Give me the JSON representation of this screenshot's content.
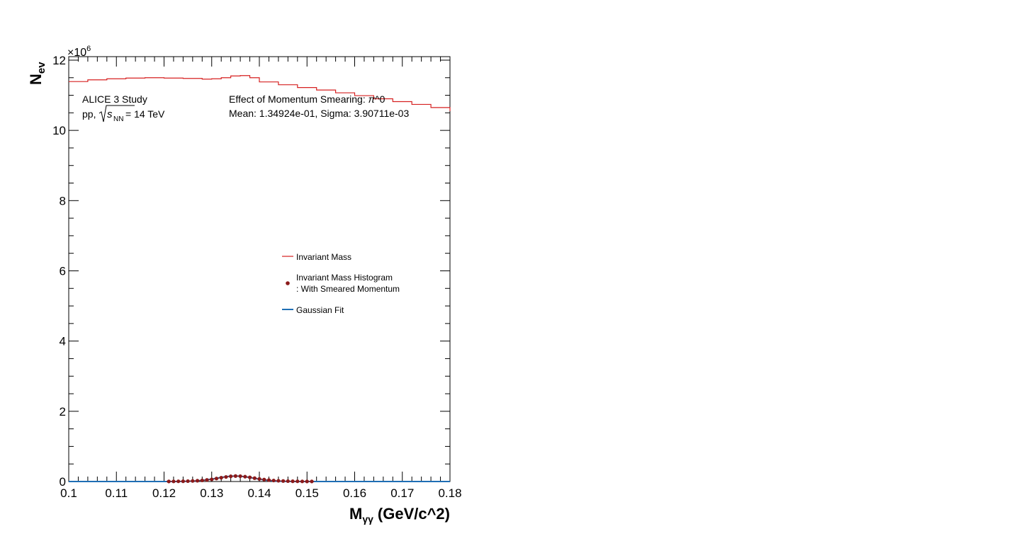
{
  "chart_data": {
    "type": "line",
    "xlabel_main": "M",
    "xlabel_sub": "γγ",
    "xlabel_unit": "(GeV/c^2)",
    "ylabel_main": "N",
    "ylabel_sub": "ev",
    "yexponent_base": "×10",
    "yexponent_power": "6",
    "xlim": [
      0.1,
      0.18
    ],
    "ylim": [
      0,
      12.1
    ],
    "xticks": [
      0.1,
      0.11,
      0.12,
      0.13,
      0.14,
      0.15,
      0.16,
      0.17,
      0.18
    ],
    "xtick_labels": [
      "0.1",
      "0.11",
      "0.12",
      "0.13",
      "0.14",
      "0.15",
      "0.16",
      "0.17",
      "0.18"
    ],
    "yticks": [
      0,
      2,
      4,
      6,
      8,
      10,
      12
    ],
    "ytick_labels": [
      "0",
      "2",
      "4",
      "6",
      "8",
      "10",
      "12"
    ],
    "annotations": {
      "study": "ALICE 3 Study",
      "system_prefix": "pp, ",
      "sqrt_s": "s",
      "sqrt_sub": "NN",
      "energy": " = 14 TeV",
      "effect_prefix": "Effect of Momentum Smearing: ",
      "effect_pi": "π",
      "effect_suffix": "^0",
      "fit_stats": "Mean: 1.34924e-01, Sigma: 3.90711e-03"
    },
    "legend_position": "center-right",
    "series": [
      {
        "name": "Invariant Mass",
        "style": "step",
        "color": "#d62020",
        "x": [
          0.1,
          0.104,
          0.108,
          0.112,
          0.116,
          0.12,
          0.124,
          0.128,
          0.13,
          0.132,
          0.134,
          0.136,
          0.138,
          0.14,
          0.144,
          0.148,
          0.152,
          0.156,
          0.16,
          0.164,
          0.168,
          0.172,
          0.176,
          0.18
        ],
        "values": [
          11.39,
          11.44,
          11.47,
          11.49,
          11.5,
          11.49,
          11.48,
          11.46,
          11.47,
          11.5,
          11.55,
          11.56,
          11.5,
          11.38,
          11.3,
          11.22,
          11.15,
          11.07,
          10.99,
          10.9,
          10.82,
          10.74,
          10.65,
          10.55
        ]
      },
      {
        "name_line1": "Invariant Mass Histogram",
        "name_line2": ": With Smeared Momentum",
        "style": "markers",
        "color": "#8b1a1a",
        "x": [
          0.121,
          0.122,
          0.123,
          0.124,
          0.125,
          0.126,
          0.127,
          0.128,
          0.129,
          0.13,
          0.131,
          0.132,
          0.133,
          0.134,
          0.135,
          0.136,
          0.137,
          0.138,
          0.139,
          0.14,
          0.141,
          0.142,
          0.143,
          0.144,
          0.145,
          0.146,
          0.147,
          0.148,
          0.149,
          0.15,
          0.151
        ],
        "values": [
          0.003,
          0.004,
          0.006,
          0.008,
          0.011,
          0.016,
          0.023,
          0.032,
          0.045,
          0.062,
          0.085,
          0.108,
          0.13,
          0.148,
          0.156,
          0.152,
          0.138,
          0.118,
          0.096,
          0.074,
          0.055,
          0.04,
          0.029,
          0.021,
          0.015,
          0.011,
          0.008,
          0.006,
          0.004,
          0.003,
          0.002
        ]
      },
      {
        "name": "Gaussian Fit",
        "style": "line",
        "color": "#1f6fb5",
        "mean": 0.134924,
        "sigma": 0.00390711,
        "amplitude": 0.155,
        "x_range": [
          0.1,
          0.18
        ]
      }
    ]
  }
}
